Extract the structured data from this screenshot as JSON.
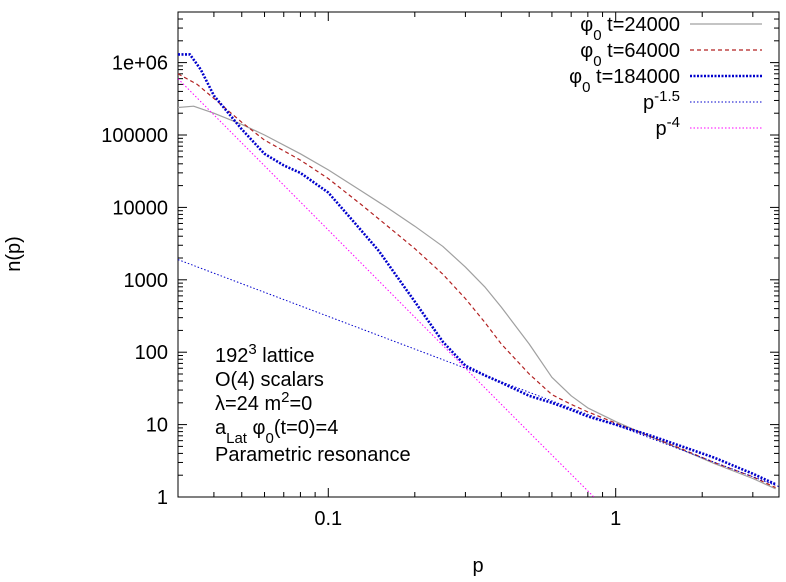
{
  "chart_data": {
    "type": "line",
    "xlabel": "p",
    "ylabel": "n(p)",
    "xscale": "log",
    "yscale": "log",
    "xlim": [
      0.03,
      3.7
    ],
    "ylim": [
      1,
      5000000
    ],
    "x_ticks": [
      {
        "value": 0.1,
        "label": "0.1"
      },
      {
        "value": 1,
        "label": "1"
      }
    ],
    "y_ticks": [
      {
        "value": 1,
        "label": "1"
      },
      {
        "value": 10,
        "label": "10"
      },
      {
        "value": 100,
        "label": "100"
      },
      {
        "value": 1000,
        "label": "1000"
      },
      {
        "value": 10000,
        "label": "10000"
      },
      {
        "value": 100000,
        "label": "100000"
      },
      {
        "value": 1000000,
        "label": "1e+06"
      }
    ],
    "grid": false,
    "legend_position": "top-right",
    "series": [
      {
        "name_main": "φ",
        "name_sub": "0",
        "name_tail": " t=24000",
        "color": "#a0a0a0",
        "style": "solid",
        "points": [
          [
            0.03,
            240000
          ],
          [
            0.034,
            250000
          ],
          [
            0.04,
            200000
          ],
          [
            0.05,
            140000
          ],
          [
            0.06,
            100000
          ],
          [
            0.08,
            55000
          ],
          [
            0.1,
            33000
          ],
          [
            0.13,
            17000
          ],
          [
            0.16,
            10000
          ],
          [
            0.2,
            5500
          ],
          [
            0.25,
            2900
          ],
          [
            0.3,
            1500
          ],
          [
            0.35,
            800
          ],
          [
            0.4,
            420
          ],
          [
            0.5,
            130
          ],
          [
            0.6,
            45
          ],
          [
            0.7,
            25
          ],
          [
            0.8,
            17
          ],
          [
            1.0,
            11
          ],
          [
            1.3,
            7
          ],
          [
            1.7,
            4.5
          ],
          [
            2.2,
            2.9
          ],
          [
            3.0,
            1.8
          ],
          [
            3.6,
            1.3
          ]
        ]
      },
      {
        "name_main": "φ",
        "name_sub": "0",
        "name_tail": " t=64000",
        "color": "#b22222",
        "style": "dashed",
        "points": [
          [
            0.03,
            700000
          ],
          [
            0.035,
            500000
          ],
          [
            0.04,
            320000
          ],
          [
            0.05,
            150000
          ],
          [
            0.06,
            85000
          ],
          [
            0.08,
            45000
          ],
          [
            0.1,
            25000
          ],
          [
            0.13,
            11000
          ],
          [
            0.16,
            5600
          ],
          [
            0.2,
            2700
          ],
          [
            0.25,
            1200
          ],
          [
            0.3,
            550
          ],
          [
            0.35,
            260
          ],
          [
            0.4,
            130
          ],
          [
            0.5,
            50
          ],
          [
            0.6,
            26
          ],
          [
            0.7,
            19
          ],
          [
            0.8,
            15
          ],
          [
            1.0,
            10.5
          ],
          [
            1.3,
            7
          ],
          [
            1.7,
            4.6
          ],
          [
            2.2,
            3.0
          ],
          [
            3.0,
            1.9
          ],
          [
            3.6,
            1.35
          ]
        ]
      },
      {
        "name_main": "φ",
        "name_sub": "0",
        "name_tail": " t=184000",
        "color": "#0000cc",
        "style": "dotted-thick",
        "points": [
          [
            0.03,
            1300000
          ],
          [
            0.033,
            1300000
          ],
          [
            0.036,
            800000
          ],
          [
            0.04,
            350000
          ],
          [
            0.05,
            120000
          ],
          [
            0.06,
            55000
          ],
          [
            0.07,
            38000
          ],
          [
            0.08,
            30000
          ],
          [
            0.1,
            16000
          ],
          [
            0.12,
            7000
          ],
          [
            0.15,
            2500
          ],
          [
            0.18,
            900
          ],
          [
            0.2,
            500
          ],
          [
            0.25,
            140
          ],
          [
            0.3,
            65
          ],
          [
            0.35,
            48
          ],
          [
            0.4,
            38
          ],
          [
            0.5,
            25
          ],
          [
            0.6,
            20
          ],
          [
            0.7,
            16
          ],
          [
            0.8,
            13
          ],
          [
            1.0,
            10
          ],
          [
            1.3,
            7.2
          ],
          [
            1.7,
            5
          ],
          [
            2.2,
            3.5
          ],
          [
            3.0,
            2.1
          ],
          [
            3.6,
            1.5
          ]
        ]
      },
      {
        "name_main": "p",
        "name_sup": "-1.5",
        "color": "#0000cc",
        "style": "fine-dots",
        "points": [
          [
            0.03,
            1900
          ],
          [
            0.1,
            312
          ],
          [
            0.5,
            27.9
          ],
          [
            1.0,
            9.86
          ],
          [
            3.7,
            1.39
          ]
        ]
      },
      {
        "name_main": "p",
        "name_sup": "-4",
        "color": "#ff00ff",
        "style": "fine-dots",
        "points": [
          [
            0.03,
            600000
          ],
          [
            0.1,
            4880
          ],
          [
            0.3,
            60.2
          ],
          [
            0.5,
            7.8
          ],
          [
            0.87,
            0.87
          ]
        ]
      }
    ],
    "annotations": [
      {
        "main": "192",
        "sup": "3",
        "tail": " lattice"
      },
      {
        "text": " O(4) scalars"
      },
      {
        "main": "λ=24  m",
        "sup": "2",
        "tail": "=0"
      },
      {
        "main": "a",
        "sub": "Lat",
        "tail": " φ",
        "sub2": "0",
        "tail2": "(t=0)=4"
      },
      {
        "text": "Parametric resonance"
      }
    ]
  }
}
